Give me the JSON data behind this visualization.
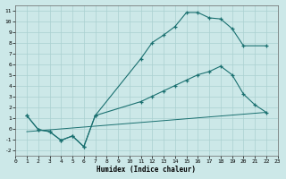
{
  "xlabel": "Humidex (Indice chaleur)",
  "bg_color": "#cce8e8",
  "grid_color": "#aad0d0",
  "line_color": "#1a7070",
  "xlim": [
    0,
    23
  ],
  "ylim": [
    -2.5,
    11.5
  ],
  "xticks": [
    0,
    1,
    2,
    3,
    4,
    5,
    6,
    7,
    8,
    9,
    10,
    11,
    12,
    13,
    14,
    15,
    16,
    17,
    18,
    19,
    20,
    21,
    22,
    23
  ],
  "yticks": [
    -2,
    -1,
    0,
    1,
    2,
    3,
    4,
    5,
    6,
    7,
    8,
    9,
    10,
    11
  ],
  "curve1_x": [
    1,
    2,
    3,
    4,
    5,
    6,
    7,
    11,
    12,
    13,
    14,
    15,
    16,
    17,
    18,
    19,
    20,
    22
  ],
  "curve1_y": [
    1.2,
    -0.1,
    -0.3,
    -1.1,
    -0.7,
    -1.7,
    1.2,
    6.5,
    8.0,
    8.7,
    9.5,
    10.8,
    10.8,
    10.3,
    10.2,
    9.3,
    7.7,
    7.7
  ],
  "curve2_x": [
    1,
    2,
    3,
    4,
    5,
    6,
    7,
    11,
    12,
    13,
    14,
    15,
    16,
    17,
    18,
    19,
    20,
    21,
    22
  ],
  "curve2_y": [
    1.2,
    -0.1,
    -0.3,
    -1.1,
    -0.7,
    -1.7,
    1.2,
    2.5,
    3.0,
    3.5,
    4.0,
    4.5,
    5.0,
    5.3,
    5.8,
    5.0,
    3.2,
    2.2,
    1.5
  ],
  "curve3_x": [
    1,
    22
  ],
  "curve3_y": [
    -0.3,
    1.5
  ]
}
